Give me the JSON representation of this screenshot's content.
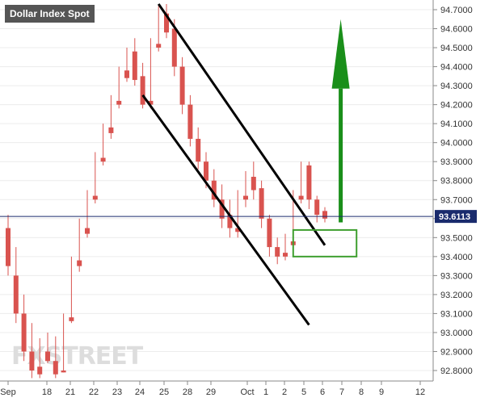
{
  "chart_data": {
    "type": "candlestick",
    "title": "Dollar Index Spot",
    "ylim": [
      92.75,
      94.75
    ],
    "y_ticks": [
      "94.7000",
      "94.6000",
      "94.5000",
      "94.4000",
      "94.3000",
      "94.2000",
      "94.1000",
      "94.0000",
      "93.9000",
      "93.8000",
      "93.7000",
      "93.6000",
      "93.5000",
      "93.4000",
      "93.3000",
      "93.2000",
      "93.1000",
      "93.0000",
      "92.9000",
      "92.8000"
    ],
    "x_ticks": [
      "Sep",
      "18",
      "21",
      "22",
      "23",
      "24",
      "25",
      "28",
      "29",
      "Oct",
      "1",
      "2",
      "5",
      "6",
      "7",
      "8",
      "9",
      "12"
    ],
    "current_price": {
      "value": 93.6113,
      "label": "93.6113",
      "color": "#1a2b6d"
    },
    "watermark": "FXSTREET",
    "colors": {
      "up": "#26a65b",
      "down": "#d9534f",
      "annotation": "#000000",
      "arrow": "#1a8f1a",
      "box": "#3f9f2f"
    },
    "candles": [
      [
        93.55,
        93.62,
        93.35,
        93.3
      ],
      [
        93.3,
        93.45,
        93.1,
        93.05
      ],
      [
        93.1,
        93.2,
        92.9,
        92.85
      ],
      [
        92.9,
        93.05,
        92.8,
        92.76
      ],
      [
        92.82,
        92.97,
        92.78,
        92.76
      ],
      [
        92.9,
        93.0,
        92.85,
        92.84
      ],
      [
        92.85,
        92.98,
        92.78,
        92.76
      ],
      [
        92.8,
        93.1,
        92.79,
        92.79
      ],
      [
        93.08,
        93.4,
        93.06,
        93.05
      ],
      [
        93.38,
        93.6,
        93.35,
        93.32
      ],
      [
        93.55,
        93.75,
        93.52,
        93.5
      ],
      [
        93.72,
        93.95,
        93.7,
        93.68
      ],
      [
        93.92,
        94.1,
        93.9,
        93.88
      ],
      [
        94.08,
        94.25,
        94.05,
        94.02
      ],
      [
        94.22,
        94.4,
        94.2,
        94.18
      ],
      [
        94.38,
        94.5,
        94.34,
        94.32
      ],
      [
        94.48,
        94.55,
        94.33,
        94.3
      ],
      [
        94.35,
        94.42,
        94.2,
        94.18
      ],
      [
        94.22,
        94.55,
        94.2,
        94.18
      ],
      [
        94.52,
        94.72,
        94.5,
        94.48
      ],
      [
        94.68,
        94.73,
        94.58,
        94.55
      ],
      [
        94.6,
        94.65,
        94.4,
        94.35
      ],
      [
        94.4,
        94.45,
        94.2,
        94.15
      ],
      [
        94.2,
        94.25,
        94.02,
        93.98
      ],
      [
        94.02,
        94.08,
        93.9,
        93.86
      ],
      [
        93.9,
        93.95,
        93.8,
        93.76
      ],
      [
        93.8,
        93.86,
        93.7,
        93.66
      ],
      [
        93.7,
        93.78,
        93.6,
        93.55
      ],
      [
        93.62,
        93.7,
        93.55,
        93.5
      ],
      [
        93.55,
        93.75,
        93.53,
        93.5
      ],
      [
        93.72,
        93.85,
        93.7,
        93.66
      ],
      [
        93.82,
        93.9,
        93.75,
        93.7
      ],
      [
        93.76,
        93.8,
        93.6,
        93.55
      ],
      [
        93.6,
        93.62,
        93.45,
        93.4
      ],
      [
        93.45,
        93.5,
        93.4,
        93.36
      ],
      [
        93.42,
        93.52,
        93.4,
        93.38
      ],
      [
        93.48,
        93.75,
        93.46,
        93.44
      ],
      [
        93.72,
        93.9,
        93.7,
        93.68
      ],
      [
        93.88,
        93.9,
        93.7,
        93.65
      ],
      [
        93.7,
        93.72,
        93.62,
        93.58
      ],
      [
        93.64,
        93.66,
        93.6,
        93.58
      ]
    ],
    "trendlines": [
      {
        "from": [
          19,
          94.73
        ],
        "to": [
          40,
          93.46
        ]
      },
      {
        "from": [
          17,
          94.25
        ],
        "to": [
          38,
          93.04
        ]
      }
    ],
    "box": {
      "from_index": 36,
      "to_index": 44,
      "y_top": 93.54,
      "y_bottom": 93.4
    },
    "arrow": {
      "index": 42,
      "from_y": 93.58,
      "to_y": 94.65
    }
  }
}
